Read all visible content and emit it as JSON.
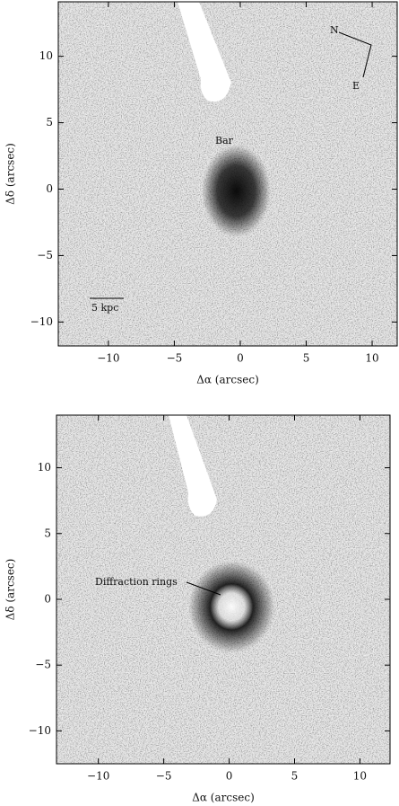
{
  "chart_data": [
    {
      "type": "image",
      "xlabel": "Δα (arcsec)",
      "ylabel": "Δδ (arcsec)",
      "xlim": [
        -13.8,
        11.9
      ],
      "ylim": [
        -11.8,
        14.1
      ],
      "xticks": [
        {
          "value": -10,
          "label": "−10"
        },
        {
          "value": -5,
          "label": "−5"
        },
        0,
        5,
        10
      ],
      "yticks": [
        {
          "value": -10,
          "label": "−10"
        },
        {
          "value": -5,
          "label": "−5"
        },
        0,
        5,
        10
      ],
      "annotations": [
        "Bar",
        "5 kpc",
        "N",
        "E"
      ]
    },
    {
      "type": "image",
      "xlabel": "Δα (arcsec)",
      "ylabel": "Δδ (arcsec)",
      "xlim": [
        -13.2,
        12.3
      ],
      "ylim": [
        -12.5,
        14.0
      ],
      "xticks": [
        {
          "value": -10,
          "label": "−10"
        },
        {
          "value": -5,
          "label": "−5"
        },
        0,
        5,
        10
      ],
      "yticks": [
        {
          "value": -10,
          "label": "−10"
        },
        {
          "value": -5,
          "label": "−5"
        },
        0,
        5,
        10
      ],
      "annotations": [
        "Diffraction rings"
      ]
    }
  ]
}
